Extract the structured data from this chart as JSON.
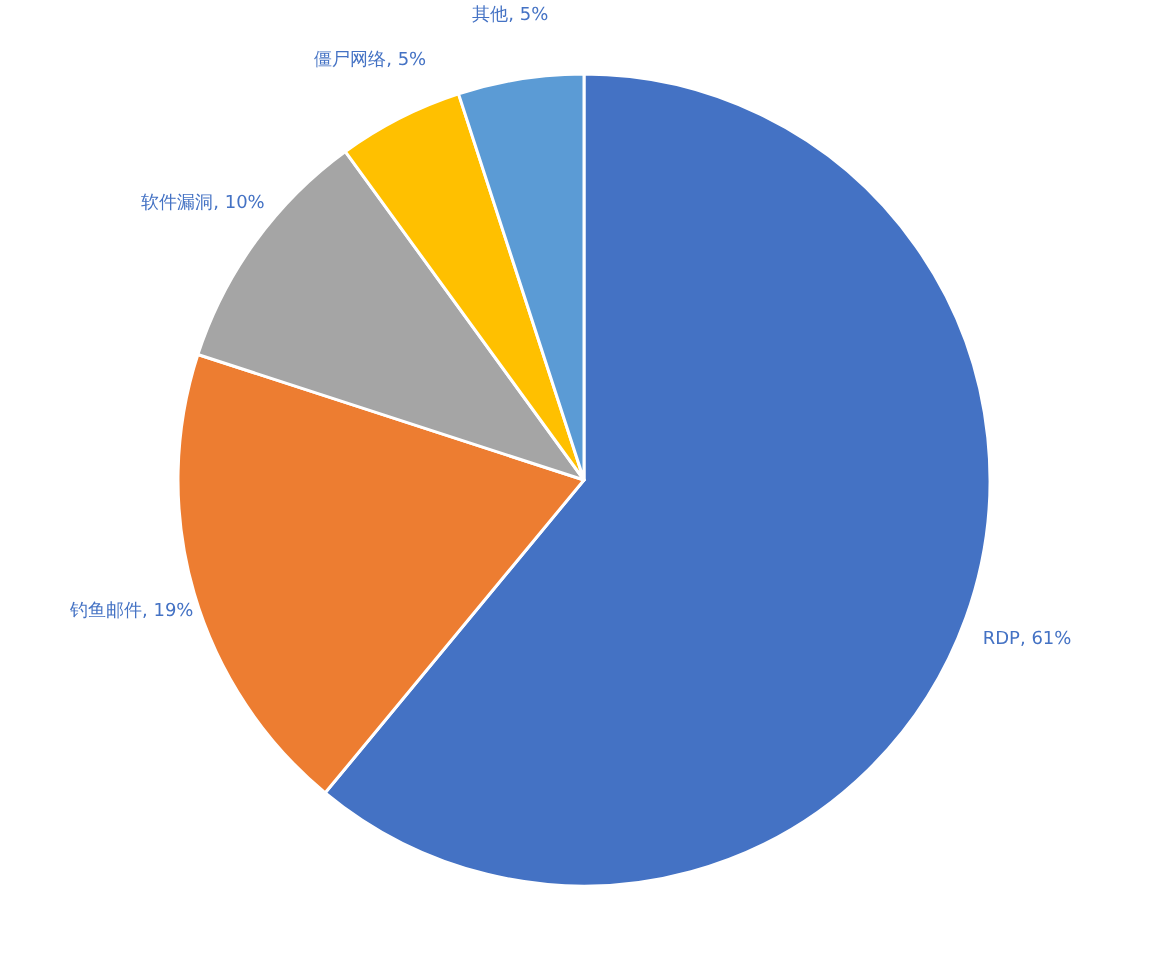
{
  "chart_data": {
    "type": "pie",
    "categories": [
      "RDP",
      "钓鱼邮件",
      "软件漏洞",
      "僵尸网络",
      "其他"
    ],
    "values": [
      61,
      19,
      10,
      5,
      5
    ],
    "value_labels": [
      "61%",
      "19%",
      "10%",
      "5%",
      "5%"
    ],
    "colors": [
      "#4472c4",
      "#ed7d31",
      "#a5a5a5",
      "#ffc000",
      "#5b9bd5"
    ]
  }
}
